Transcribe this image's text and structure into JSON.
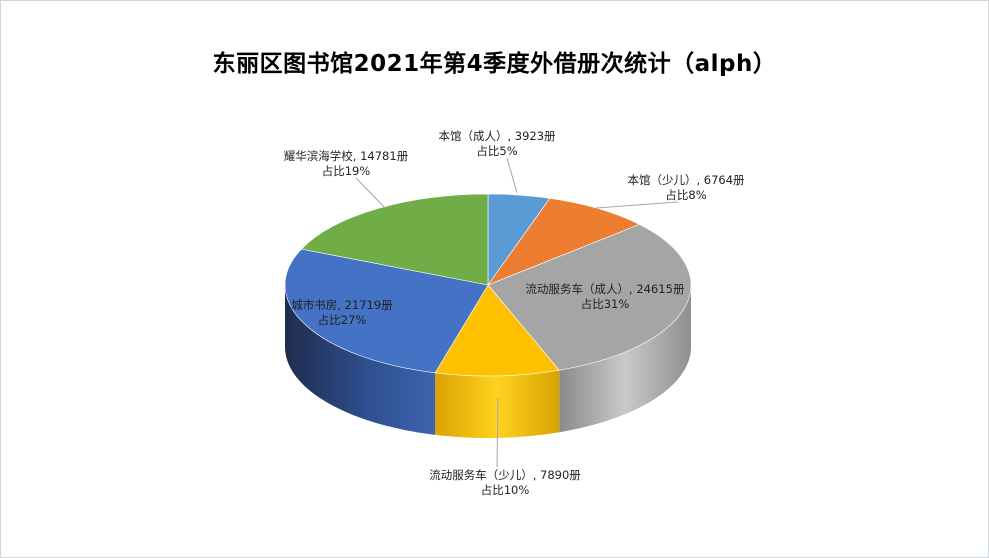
{
  "title": "东丽区图书馆2021年第4季度外借册次统计（alph）",
  "chart_data": {
    "type": "pie",
    "style": "3d",
    "title": "东丽区图书馆2021年第4季度外借册次统计（alph）",
    "unit": "册",
    "legend": "none",
    "slices": [
      {
        "name": "本馆（成人）",
        "value": 3923,
        "percent": "5%",
        "color": "#5b9bd5",
        "label": "本馆（成人）, 3923册",
        "pct_label": "占比5%"
      },
      {
        "name": "本馆（少儿）",
        "value": 6764,
        "percent": "8%",
        "color": "#ed7d31",
        "label": "本馆（少儿）, 6764册",
        "pct_label": "占比8%"
      },
      {
        "name": "流动服务车（成人）",
        "value": 24615,
        "percent": "31%",
        "color": "#a5a5a5",
        "label": "流动服务车（成人）, 24615册",
        "pct_label": "占比31%"
      },
      {
        "name": "流动服务车（少儿）",
        "value": 7890,
        "percent": "10%",
        "color": "#ffc000",
        "label": "流动服务车（少儿）, 7890册",
        "pct_label": "占比10%"
      },
      {
        "name": "城市书房",
        "value": 21719,
        "percent": "27%",
        "color": "#4472c4",
        "label": "城市书房, 21719册",
        "pct_label": "占比27%"
      },
      {
        "name": "耀华滨海学校",
        "value": 14781,
        "percent": "19%",
        "color": "#70ad47",
        "label": "耀华滨海学校, 14781册",
        "pct_label": "占比19%"
      }
    ]
  }
}
